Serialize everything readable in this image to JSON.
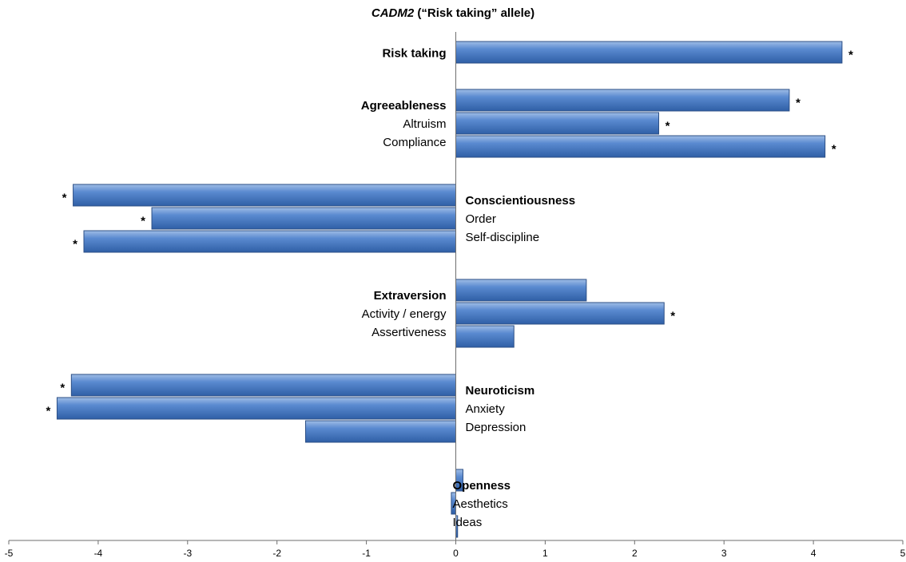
{
  "chart_data": {
    "type": "bar",
    "orientation": "horizontal",
    "title_italic": "CADM2",
    "title_rest": " (“Risk taking” allele)",
    "xlim": [
      -5,
      5
    ],
    "x_ticks": [
      "-5",
      "-4",
      "-3",
      "-2",
      "-1",
      "0",
      "1",
      "2",
      "3",
      "4",
      "5"
    ],
    "bar_color": "#4f81bd",
    "significance_marker": "*",
    "groups": [
      {
        "name": "Risk taking",
        "items": [
          {
            "label": "",
            "value": 4.32,
            "significant": true
          }
        ]
      },
      {
        "name": "Agreeableness",
        "items": [
          {
            "label": "Agreeableness",
            "value": 3.73,
            "significant": true
          },
          {
            "label": "Altruism",
            "value": 2.27,
            "significant": true
          },
          {
            "label": "Compliance",
            "value": 4.13,
            "significant": true
          }
        ]
      },
      {
        "name": "Conscientiousness",
        "items": [
          {
            "label": "Conscientiousness",
            "value": -4.28,
            "significant": true
          },
          {
            "label": "Order",
            "value": -3.4,
            "significant": true
          },
          {
            "label": "Self-discipline",
            "value": -4.16,
            "significant": true
          }
        ]
      },
      {
        "name": "Extraversion",
        "items": [
          {
            "label": "Extraversion",
            "value": 1.46,
            "significant": false
          },
          {
            "label": "Activity / energy",
            "value": 2.33,
            "significant": true
          },
          {
            "label": "Assertiveness",
            "value": 0.65,
            "significant": false
          }
        ]
      },
      {
        "name": "Neuroticism",
        "items": [
          {
            "label": "Neuroticism",
            "value": -4.3,
            "significant": true
          },
          {
            "label": "Anxiety",
            "value": -4.46,
            "significant": true
          },
          {
            "label": "Depression",
            "value": -1.68,
            "significant": false
          }
        ]
      },
      {
        "name": "Openness",
        "items": [
          {
            "label": "Openness",
            "value": 0.08,
            "significant": false
          },
          {
            "label": "Aesthetics",
            "value": -0.05,
            "significant": false
          },
          {
            "label": "Ideas",
            "value": 0.02,
            "significant": false
          }
        ]
      }
    ]
  }
}
